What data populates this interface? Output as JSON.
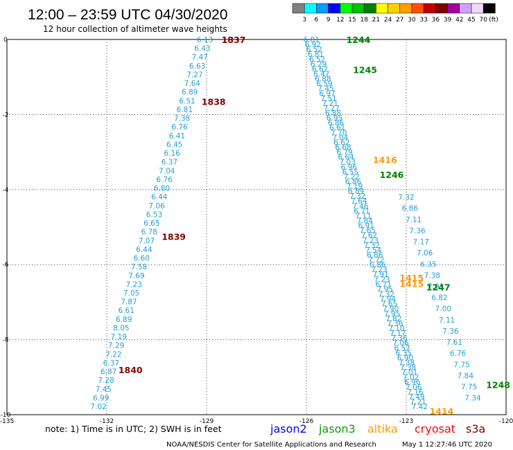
{
  "title": "12:00 – 23:59 UTC 04/30/2020",
  "subtitle": "12 hour collection of altimeter wave heights",
  "note": "note:  1) Time is in UTC;  2) SWH is in feet",
  "footer": "NOAA/NESDIS Center for Satellite Applications and Research",
  "timestamp": "May  1 12:27:46 UTC 2020",
  "colors": {
    "swh": "#22a0d8",
    "red": "#800000",
    "green": "#008000",
    "orange": "#ff9900",
    "jason2": "#0000ff",
    "jason3": "#00a000",
    "altika": "#ff9900",
    "cryosat": "#ff0000",
    "s3a": "#800000"
  },
  "legend": {
    "unit": "(ft)",
    "bins": [
      {
        "label": "3",
        "color": "#808080"
      },
      {
        "label": "6",
        "color": "#00ffff"
      },
      {
        "label": "9",
        "color": "#00a0ff"
      },
      {
        "label": "12",
        "color": "#0000ff"
      },
      {
        "label": "15",
        "color": "#00ff00"
      },
      {
        "label": "18",
        "color": "#00c000"
      },
      {
        "label": "21",
        "color": "#008000"
      },
      {
        "label": "24",
        "color": "#ffff00"
      },
      {
        "label": "27",
        "color": "#ffd000"
      },
      {
        "label": "30",
        "color": "#ffa000"
      },
      {
        "label": "33",
        "color": "#ff5000"
      },
      {
        "label": "36",
        "color": "#c00000"
      },
      {
        "label": "39",
        "color": "#800000"
      },
      {
        "label": "42",
        "color": "#a000a0"
      },
      {
        "label": "45",
        "color": "#d0a0ff"
      },
      {
        "label": "70",
        "color": "#f0d8ff"
      },
      {
        "label": "",
        "color": "#000000"
      }
    ]
  },
  "satellites": [
    {
      "name": "jason2",
      "color": "#0000ff"
    },
    {
      "name": "jason3",
      "color": "#00a000"
    },
    {
      "name": "altika",
      "color": "#ff9900"
    },
    {
      "name": "cryosat",
      "color": "#ff0000"
    },
    {
      "name": "s3a",
      "color": "#800000"
    }
  ],
  "chart_data": {
    "type": "scatter",
    "xlim": [
      -135,
      -120
    ],
    "ylim": [
      -10,
      0
    ],
    "xticks": [
      {
        "value": -135,
        "label": "-135"
      },
      {
        "value": -132,
        "label": "-132"
      },
      {
        "value": -129,
        "label": "-129"
      },
      {
        "value": -126,
        "label": "-126"
      },
      {
        "value": -123,
        "label": "-123"
      },
      {
        "value": -120,
        "label": "-120"
      }
    ],
    "yticks": [
      {
        "value": 0,
        "label": "0"
      },
      {
        "value": -2,
        "label": "-2"
      },
      {
        "value": -4,
        "label": "-4"
      },
      {
        "value": -6,
        "label": "-6"
      },
      {
        "value": -8,
        "label": "-8"
      },
      {
        "value": -10,
        "label": "-10"
      }
    ],
    "grid": true,
    "tracks": [
      {
        "satellite": "s3a",
        "start": [
          -129.05,
          0.0
        ],
        "end": [
          -132.25,
          -9.78
        ],
        "values": [
          "6.13",
          "6.43",
          "7.47",
          "6.63",
          "7.27",
          "7.64",
          "6.89",
          "6.51",
          "6.81",
          "7.38",
          "6.76",
          "6.41",
          "6.45",
          "6.16",
          "6.37",
          "7.04",
          "6.76",
          "6.80",
          "6.44",
          "7.06",
          "6.53",
          "6.65",
          "6.78",
          "7.07",
          "6.44",
          "6.60",
          "7.58",
          "7.69",
          "7.23",
          "7.05",
          "7.87",
          "6.61",
          "6.89",
          "8.05",
          "7.19",
          "7.29",
          "7.22",
          "6.37",
          "6.87",
          "7.28",
          "7.45",
          "6.99",
          "7.02"
        ],
        "times": [
          {
            "label": "1837",
            "lat": 0.0,
            "lon": -128.55
          },
          {
            "label": "1838",
            "lat": -1.65,
            "lon": -129.15
          },
          {
            "label": "1839",
            "lat": -5.25,
            "lon": -130.35
          },
          {
            "label": "1840",
            "lat": -8.8,
            "lon": -131.65
          }
        ]
      },
      {
        "satellite": "jason3",
        "start": [
          -125.85,
          0.0
        ],
        "end": [
          -122.6,
          -9.78
        ],
        "values": [
          "6.81",
          "6.92",
          "6.52",
          "6.81",
          "6.52",
          "6.29",
          "6.62",
          "6.47",
          "6.88",
          "6.59",
          "7.45",
          "6.97",
          "7.51",
          "7.21",
          "7.27",
          "6.88",
          "6.95",
          "6.86",
          "6.61",
          "7.70",
          "7.04",
          "6.62",
          "6.68",
          "6.79",
          "6.64",
          "7.03",
          "6.96",
          "6.55",
          "7.22",
          "6.86",
          "7.19",
          "6.89",
          "7.32",
          "7.64",
          "7.46",
          "6.71",
          "7.11",
          "7.84",
          "6.91",
          "7.65",
          "7.62",
          "7.23",
          "7.32",
          "7.54",
          "6.86",
          "7.72",
          "6.86",
          "7.23",
          "7.91",
          "7.23",
          "6.71",
          "7.95",
          "7.32",
          "7.94",
          "7.65",
          "7.90",
          "7.95",
          "7.82",
          "7.36",
          "7.10",
          "7.17",
          "7.36",
          "7.06",
          "6.57",
          "6.35",
          "6.90",
          "7.38",
          "7.38",
          "7.01",
          "7.02",
          "6.96",
          "7.06",
          "7.16",
          "7.49",
          "7.21",
          "7.42"
        ],
        "times": [
          {
            "label": "1244",
            "lat": 0.0,
            "lon": -124.8
          },
          {
            "label": "1245",
            "lat": -0.8,
            "lon": -124.6
          },
          {
            "label": "1246",
            "lat": -3.6,
            "lon": -123.8
          }
        ]
      },
      {
        "satellite": "jason3",
        "start": [
          -123.0,
          -4.2
        ],
        "end": [
          -121.0,
          -9.55
        ],
        "values": [
          "7.32",
          "6.86",
          "7.11",
          "7.36",
          "7.17",
          "7.06",
          "6.35",
          "7.38",
          "7.01",
          "6.82",
          "7.00",
          "7.11",
          "7.36",
          "7.61",
          "6.76",
          "7.75",
          "7.84",
          "7.75",
          "7.34"
        ],
        "times": [
          {
            "label": "1247",
            "lat": -6.6,
            "lon": -122.4
          },
          {
            "label": "1248",
            "lat": -9.2,
            "lon": -120.6
          }
        ]
      }
    ],
    "altika_labels": [
      {
        "label": "1416",
        "lat": -3.2,
        "lon": -124.0
      },
      {
        "label": "1415",
        "lat": -6.35,
        "lon": -123.2
      },
      {
        "label": "1415",
        "lat": -6.5,
        "lon": -123.2
      },
      {
        "label": "1414",
        "lat": -9.9,
        "lon": -122.3
      }
    ]
  }
}
